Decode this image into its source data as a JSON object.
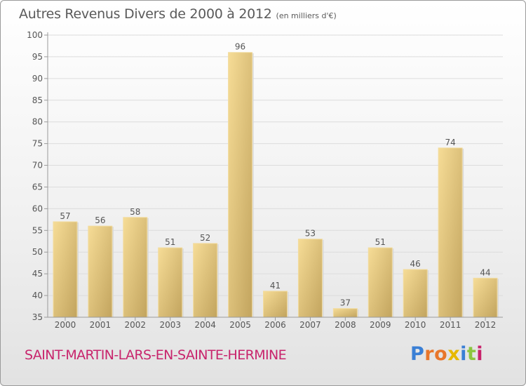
{
  "header": {
    "title": "Autres Revenus Divers de 2000 à 2012",
    "unit": "(en milliers d'€)"
  },
  "footer": {
    "town": "SAINT-MARTIN-LARS-EN-SAINTE-HERMINE",
    "logo": "Proxiti",
    "logo_colors": [
      "#3a7fd5",
      "#e8762b",
      "#e8762b",
      "#e6b800",
      "#3a7fd5",
      "#8cc63f",
      "#c8246c"
    ]
  },
  "colors": {
    "bar_light": "#f6dc96",
    "bar_dark": "#c2a45e",
    "grid": "#dcdcdc",
    "axis": "#9a9a9a",
    "text": "#555555",
    "town": "#c8246c"
  },
  "chart_data": {
    "type": "bar",
    "categories": [
      "2000",
      "2001",
      "2002",
      "2003",
      "2004",
      "2005",
      "2006",
      "2007",
      "2008",
      "2009",
      "2010",
      "2011",
      "2012"
    ],
    "values": [
      57,
      56,
      58,
      51,
      52,
      96,
      41,
      53,
      37,
      51,
      46,
      74,
      44
    ],
    "ylim": [
      35,
      100
    ],
    "yticks": [
      35,
      40,
      45,
      50,
      55,
      60,
      65,
      70,
      75,
      80,
      85,
      90,
      95,
      100
    ],
    "grid": "horizontal",
    "legend": "none"
  }
}
